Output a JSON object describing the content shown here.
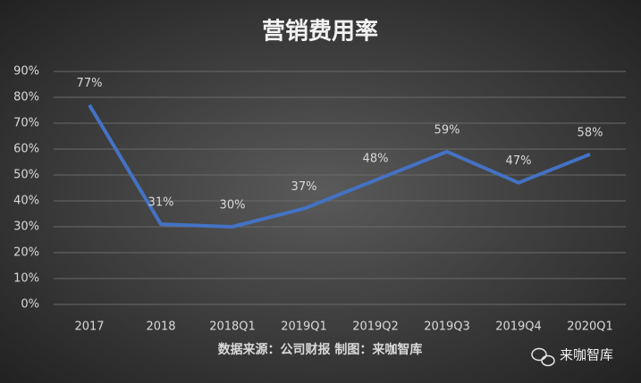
{
  "chart_data": {
    "type": "line",
    "title": "营销费用率",
    "categories": [
      "2017",
      "2018",
      "2018Q1",
      "2019Q1",
      "2019Q2",
      "2019Q3",
      "2019Q4",
      "2020Q1"
    ],
    "series": [
      {
        "name": "营销费用率",
        "color": "#4472c4",
        "values": [
          77,
          31,
          30,
          37,
          48,
          59,
          47,
          58
        ],
        "value_labels": [
          "77%",
          "31%",
          "30%",
          "37%",
          "48%",
          "59%",
          "47%",
          "58%"
        ]
      }
    ],
    "ylim": [
      0,
      90
    ],
    "yticks": [
      {
        "value": 0,
        "label": "0%"
      },
      {
        "value": 10,
        "label": "10%"
      },
      {
        "value": 20,
        "label": "20%"
      },
      {
        "value": 30,
        "label": "30%"
      },
      {
        "value": 40,
        "label": "40%"
      },
      {
        "value": 50,
        "label": "50%"
      },
      {
        "value": 60,
        "label": "60%"
      },
      {
        "value": 70,
        "label": "70%"
      },
      {
        "value": 80,
        "label": "80%"
      },
      {
        "value": 90,
        "label": "90%"
      }
    ],
    "grid": true,
    "source": "数据来源：公司财报 制图：来咖智库",
    "watermark": "来咖智库"
  }
}
